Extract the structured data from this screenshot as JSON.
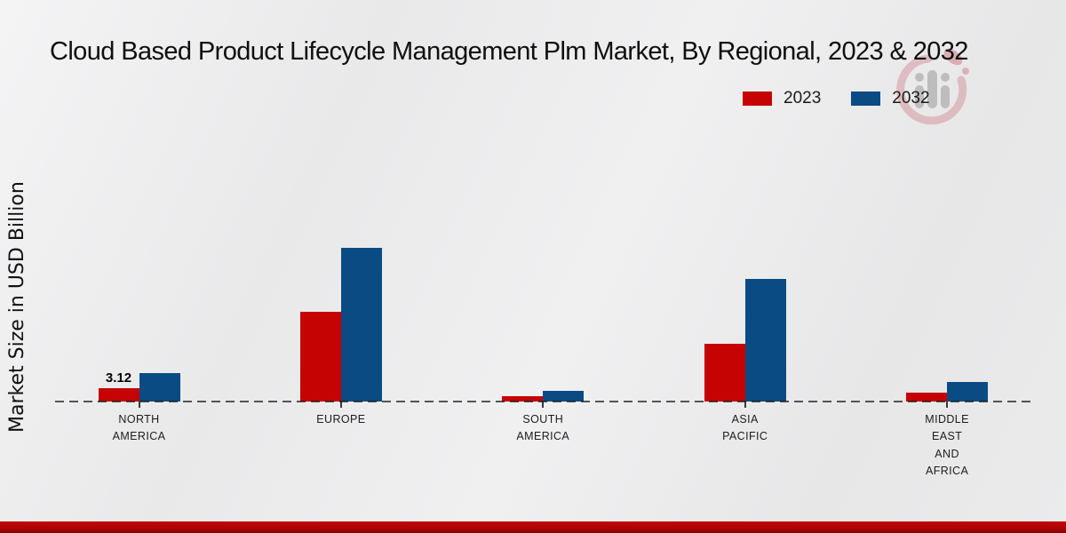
{
  "title": "Cloud Based Product Lifecycle Management Plm Market, By Regional, 2023 & 2032",
  "chart_data": {
    "type": "bar",
    "title": "Cloud Based Product Lifecycle Management Plm Market, By Regional, 2023 & 2032",
    "ylabel": "Market Size in USD Billion",
    "xlabel": "",
    "categories": [
      "NORTH AMERICA",
      "EUROPE",
      "SOUTH AMERICA",
      "ASIA PACIFIC",
      "MIDDLE EAST AND AFRICA"
    ],
    "category_label_lines": [
      [
        "NORTH",
        "AMERICA"
      ],
      [
        "EUROPE"
      ],
      [
        "SOUTH",
        "AMERICA"
      ],
      [
        "ASIA",
        "PACIFIC"
      ],
      [
        "MIDDLE",
        "EAST",
        "AND",
        "AFRICA"
      ]
    ],
    "series": [
      {
        "name": "2023",
        "color": "#c50303",
        "values": [
          3.12,
          20.7,
          1.3,
          13.3,
          2.0
        ]
      },
      {
        "name": "2032",
        "color": "#0a4b84",
        "values": [
          6.6,
          35.3,
          2.5,
          28.2,
          4.4
        ]
      }
    ],
    "annotations": [
      {
        "series": "2023",
        "category": "NORTH AMERICA",
        "text": "3.12"
      }
    ],
    "ylim": [
      0,
      40
    ],
    "grid": false,
    "legend_position": "top-right",
    "axis_style": "dashed-baseline-with-category-ticks"
  },
  "colors": {
    "series_2023": "#c50303",
    "series_2032": "#0a4b84",
    "background": "#eaeaec",
    "bottom_accent_bar": "#b00404",
    "baseline": "#2a2a2a"
  },
  "icons": {
    "watermark": "market-research-logo-watermark"
  }
}
